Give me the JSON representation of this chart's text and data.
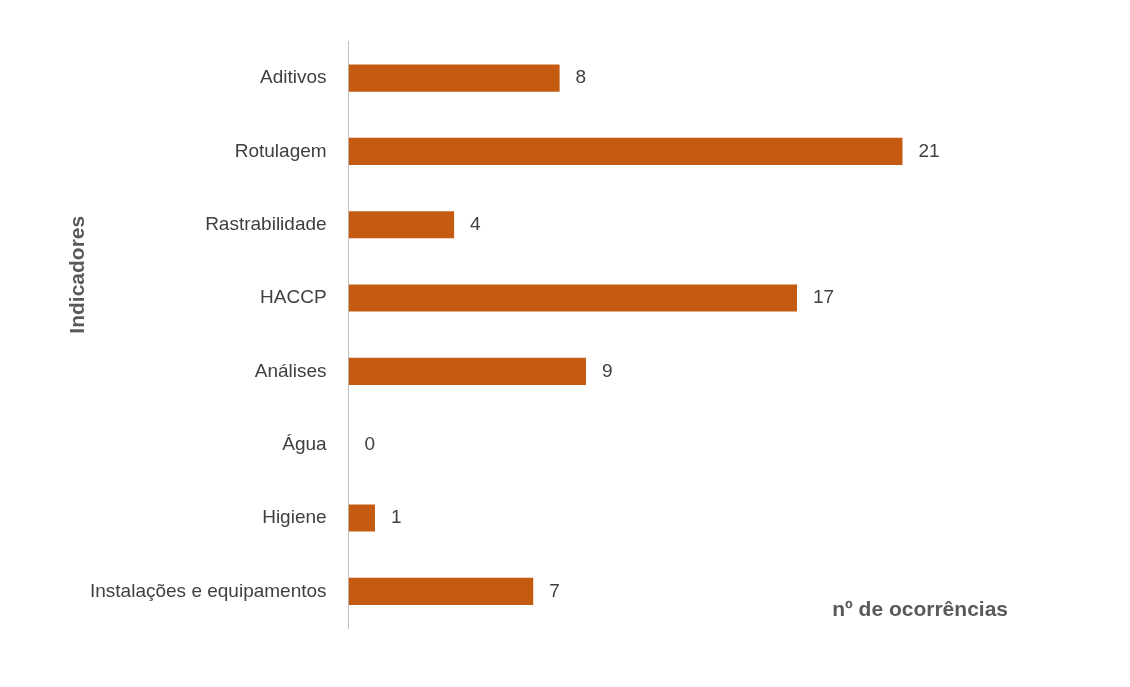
{
  "chart_data": {
    "type": "bar",
    "orientation": "horizontal",
    "xlabel": "nº de ocorrências",
    "ylabel": "Indicadores",
    "categories": [
      "Aditivos",
      "Rotulagem",
      "Rastrabilidade",
      "HACCP",
      "Análises",
      "Água",
      "Higiene",
      "Instalações e equipamentos"
    ],
    "values": [
      8,
      21,
      4,
      17,
      9,
      0,
      1,
      7
    ],
    "color": "#c55a11",
    "data_labels": true,
    "grid": false,
    "legend": false
  }
}
